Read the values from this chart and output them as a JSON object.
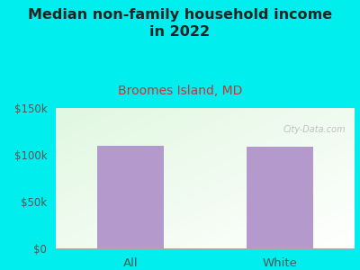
{
  "title": "Median non-family household income\nin 2022",
  "subtitle": "Broomes Island, MD",
  "categories": [
    "All",
    "White"
  ],
  "values": [
    110000,
    109000
  ],
  "bar_color": "#b399cc",
  "ylim": [
    0,
    150000
  ],
  "ytick_labels": [
    "$0",
    "$50k",
    "$100k",
    "$150k"
  ],
  "ytick_values": [
    0,
    50000,
    100000,
    150000
  ],
  "title_fontsize": 11.5,
  "subtitle_fontsize": 10,
  "subtitle_color": "#cc3333",
  "title_color": "#222222",
  "background_color": "#00eeee",
  "watermark": "City-Data.com",
  "tick_color": "#555555",
  "bar_width": 0.45
}
